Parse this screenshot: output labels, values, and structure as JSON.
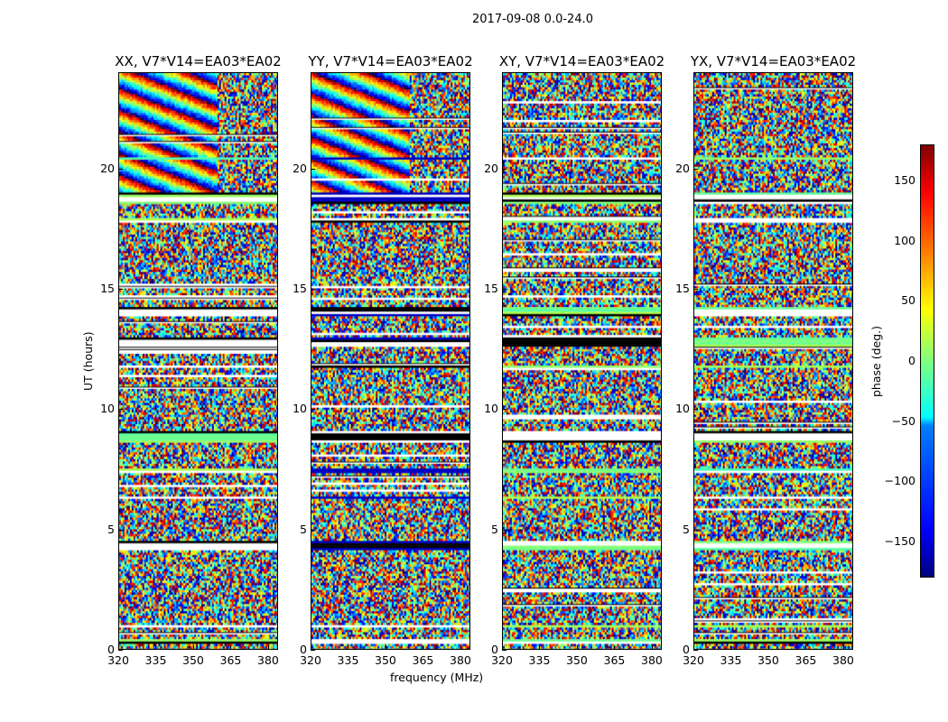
{
  "suptitle": "2017-09-08 0.0-24.0",
  "chart_data": {
    "type": "heatmap",
    "title": "2017-09-08 0.0-24.0",
    "xlabel": "frequency (MHz)",
    "ylabel": "UT (hours)",
    "xlim": [
      320,
      384
    ],
    "ylim": [
      0,
      24
    ],
    "xticks": [
      "320",
      "335",
      "350",
      "365",
      "380"
    ],
    "xtick_values": [
      320,
      335,
      350,
      365,
      380
    ],
    "yticks": [
      "0",
      "5",
      "10",
      "15",
      "20"
    ],
    "ytick_values": [
      0,
      5,
      10,
      15,
      20
    ],
    "panels": [
      {
        "title": "XX, V7*V14=EA03*EA02"
      },
      {
        "title": "YY, V7*V14=EA03*EA02"
      },
      {
        "title": "XY, V7*V14=EA03*EA02"
      },
      {
        "title": "YX, V7*V14=EA03*EA02"
      }
    ],
    "flagged_hours": [
      [
        0.3,
        0.5
      ],
      [
        0.9,
        1.0
      ],
      [
        4.2,
        4.5
      ],
      [
        6.3,
        6.4
      ],
      [
        7.4,
        7.6
      ],
      [
        8.6,
        9.1
      ],
      [
        11.8,
        11.9
      ],
      [
        12.6,
        13.0
      ],
      [
        13.9,
        14.3
      ],
      [
        17.8,
        18.0
      ],
      [
        18.6,
        19.1
      ],
      [
        20.4,
        20.5
      ]
    ],
    "value_range": [
      -180,
      180
    ],
    "colormap": "jet",
    "colorbar": {
      "label": "phase (deg.)",
      "ticks": [
        "150",
        "100",
        "50",
        "0",
        "−50",
        "−100",
        "−150"
      ],
      "tick_values": [
        150,
        100,
        50,
        0,
        -50,
        -100,
        -150
      ],
      "range": [
        -180,
        180
      ]
    }
  }
}
